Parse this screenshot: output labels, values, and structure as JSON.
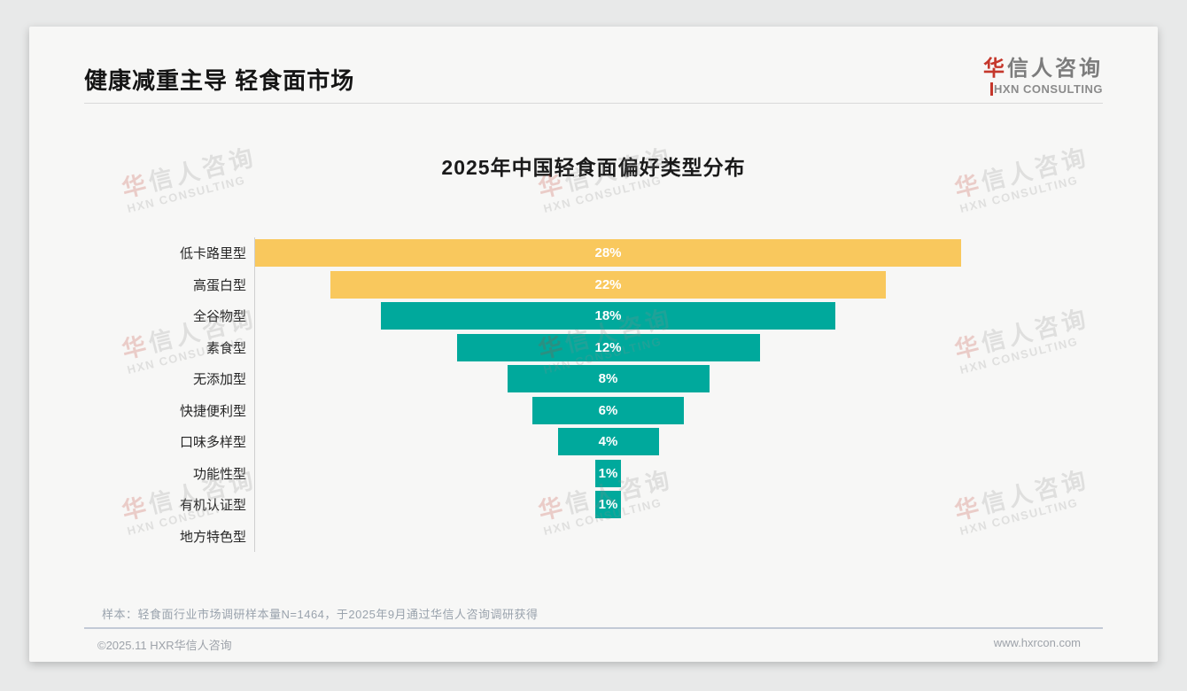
{
  "page": {
    "header": {
      "title": "健康减重主导 轻食面市场"
    },
    "logo": {
      "cn_accent": "华",
      "cn_rest": "信人咨询",
      "en_first": "H",
      "en_rest": "XN CONSULTING"
    },
    "watermark": {
      "cn_accent": "华",
      "cn_rest": "信人咨询",
      "en": "HXN CONSULTING"
    },
    "footnote": "样本：轻食面行业市场调研样本量N=1464，于2025年9月通过华信人咨询调研获得",
    "footer": {
      "left": "©2025.11 HXR华信人咨询",
      "right": "www.hxrcon.com"
    }
  },
  "chart_data": {
    "type": "bar",
    "variant": "centered-funnel",
    "title": "2025年中国轻食面偏好类型分布",
    "categories": [
      "低卡路里型",
      "高蛋白型",
      "全谷物型",
      "素食型",
      "无添加型",
      "快捷便利型",
      "口味多样型",
      "功能性型",
      "有机认证型",
      "地方特色型"
    ],
    "values": [
      28,
      22,
      18,
      12,
      8,
      6,
      4,
      1,
      1,
      0
    ],
    "value_labels": [
      "28%",
      "22%",
      "18%",
      "12%",
      "8%",
      "6%",
      "4%",
      "1%",
      "1%",
      ""
    ],
    "unit": "%",
    "xlim": [
      0,
      28
    ],
    "orientation": "horizontal",
    "grid": false,
    "legend": false,
    "colors": {
      "highlight": "#f9c85d",
      "default": "#00a99c",
      "bar_text": "#ffffff"
    },
    "highlight_count": 2
  }
}
